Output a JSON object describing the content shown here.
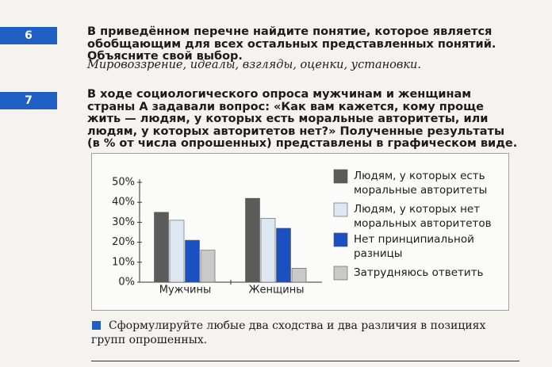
{
  "tasks": [
    {
      "number": "6",
      "text": "В приведённом перечне найдите понятие, которое является обобщающим для всех остальных представленных понятий. Объясните свой выбор.",
      "list": "Мировоззрение, идеалы, взгляды, оценки, установки."
    },
    {
      "number": "7",
      "text": "В ходе социологического опроса мужчинам и женщинам страны А задавали вопрос: «Как вам кажется, кому проще жить — людям, у которых есть моральные авторитеты, или людям, у которых авторитетов нет?» Полученные результаты (в % от числа опрошенных) представлены в графическом виде."
    }
  ],
  "chart_data": {
    "type": "bar",
    "categories": [
      "Мужчины",
      "Женщины"
    ],
    "series": [
      {
        "name": "Людям, у которых есть моральные авторитеты",
        "color": "#5b5b5b",
        "values": [
          35,
          42
        ]
      },
      {
        "name": "Людям, у которых нет моральных авторитетов",
        "color": "#dce7f2",
        "values": [
          31,
          32
        ]
      },
      {
        "name": "Нет принципиальной разницы",
        "color": "#1c50c2",
        "values": [
          21,
          27
        ]
      },
      {
        "name": "Затрудняюсь ответить",
        "color": "#c9c9c9",
        "values": [
          16,
          7
        ]
      }
    ],
    "ylim": [
      0,
      50
    ],
    "yticks": [
      {
        "value": 0,
        "label": "0%"
      },
      {
        "value": 10,
        "label": "10%"
      },
      {
        "value": 20,
        "label": "20%"
      },
      {
        "value": 30,
        "label": "30%"
      },
      {
        "value": 40,
        "label": "40%"
      },
      {
        "value": 50,
        "label": "50%"
      }
    ]
  },
  "question": "Сформулируйте любые два сходства и два различия в позициях групп опрошенных."
}
